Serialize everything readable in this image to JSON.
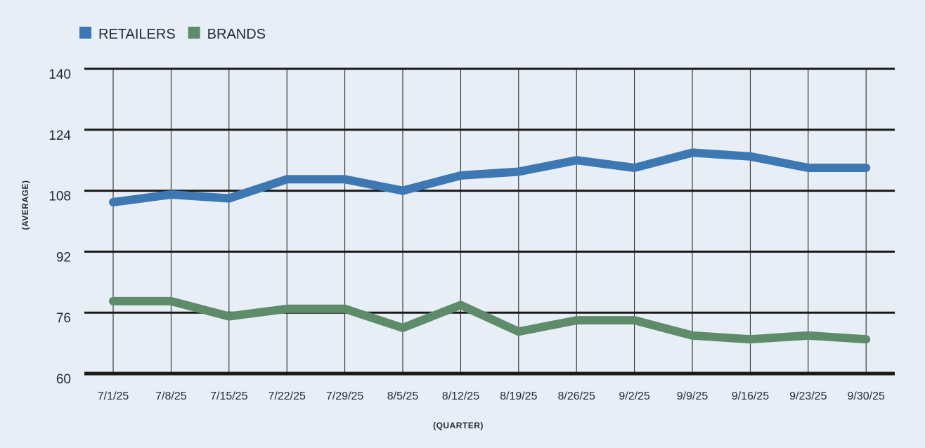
{
  "chart_data": {
    "type": "line",
    "title": "",
    "xlabel": "(QUARTER)",
    "ylabel": "(AVERAGE)",
    "x": [
      "7/1/25",
      "7/8/25",
      "7/15/25",
      "7/22/25",
      "7/29/25",
      "8/5/25",
      "8/12/25",
      "8/19/25",
      "8/26/25",
      "9/2/25",
      "9/9/25",
      "9/16/25",
      "9/23/25",
      "9/30/25"
    ],
    "yticks": [
      60,
      76,
      92,
      108,
      124,
      140
    ],
    "ylim": [
      60,
      140
    ],
    "grid": true,
    "legend_position": "top-left",
    "series": [
      {
        "name": "RETAILERS",
        "color": "#3d78b2",
        "values": [
          105,
          107,
          106,
          111,
          111,
          108,
          112,
          113,
          116,
          114,
          118,
          117,
          114,
          114
        ]
      },
      {
        "name": "BRANDS",
        "color": "#5e8c6a",
        "values": [
          79,
          79,
          75,
          77,
          77,
          72,
          78,
          71,
          74,
          74,
          70,
          69,
          70,
          69
        ]
      }
    ]
  }
}
